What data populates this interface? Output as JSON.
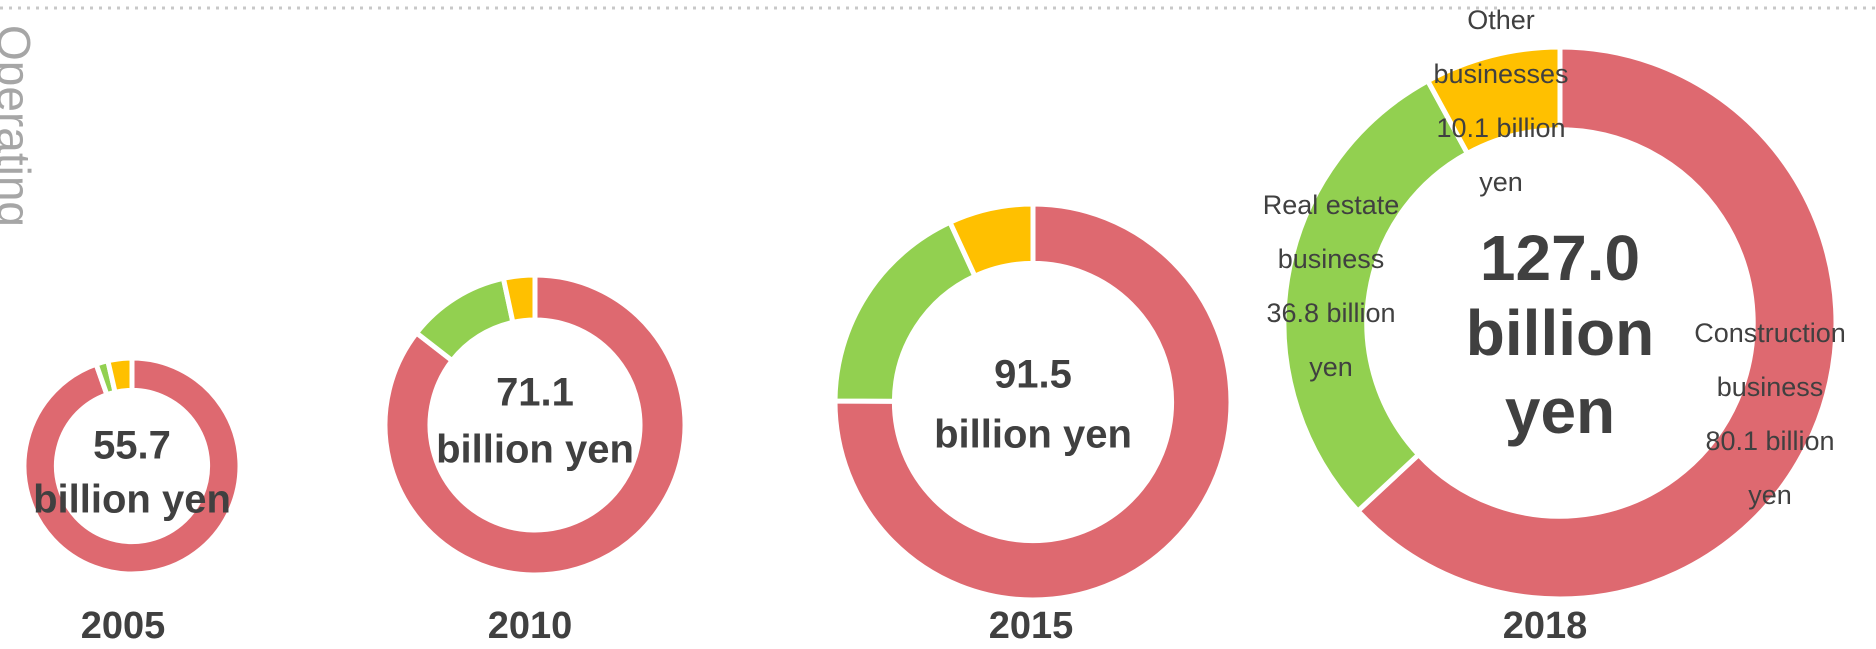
{
  "side_text": "Operating",
  "chart_data": [
    {
      "type": "donut",
      "title": "2005",
      "center_lines": [
        "55.7",
        "billion yen"
      ],
      "values": [
        52.7,
        1.0,
        2.0
      ],
      "colors": [
        "#de6970",
        "#92d050",
        "#ffc000"
      ]
    },
    {
      "type": "donut",
      "title": "2010",
      "center_lines": [
        "71.1",
        "billion yen"
      ],
      "values": [
        60.8,
        7.9,
        2.4
      ],
      "colors": [
        "#de6970",
        "#92d050",
        "#ffc000"
      ]
    },
    {
      "type": "donut",
      "title": "2015",
      "center_lines": [
        "91.5",
        "billion yen"
      ],
      "values": [
        68.7,
        16.5,
        6.3
      ],
      "colors": [
        "#de6970",
        "#92d050",
        "#ffc000"
      ]
    },
    {
      "type": "donut",
      "title": "2018",
      "center_lines": [
        "127.0",
        "billion",
        "yen"
      ],
      "categories": [
        "Construction business",
        "Real estate business",
        "Other businesses"
      ],
      "values": [
        80.1,
        36.8,
        10.1
      ],
      "colors": [
        "#de6970",
        "#92d050",
        "#ffc000"
      ],
      "value_labels": [
        [
          "Construction",
          "business",
          "80.1 billion",
          "yen"
        ],
        [
          "Real estate",
          "business",
          "36.8 billion",
          "yen"
        ],
        [
          "Other",
          "businesses",
          "10.1 billion",
          "yen"
        ]
      ]
    }
  ]
}
